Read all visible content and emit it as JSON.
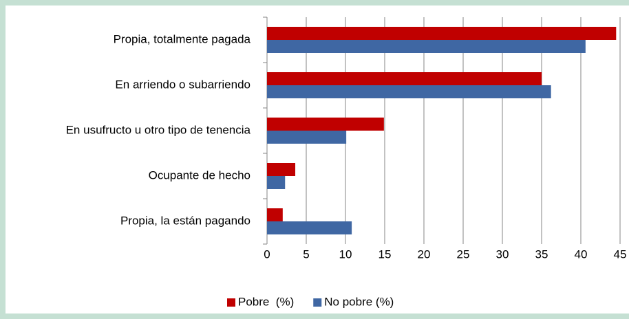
{
  "chart_data": {
    "type": "hbar",
    "categories": [
      "Propia, totalmente pagada",
      "En arriendo o subarriendo",
      "En usufructo u otro tipo de tenencia",
      "Ocupante de hecho",
      "Propia, la están pagando"
    ],
    "series": [
      {
        "name": "Pobre  (%)",
        "color": "#c00000",
        "values": [
          44.5,
          35.0,
          14.9,
          3.6,
          2.0
        ]
      },
      {
        "name": "No pobre (%)",
        "color": "#3f67a3",
        "values": [
          40.6,
          36.2,
          10.1,
          2.3,
          10.8
        ]
      }
    ],
    "xlim": [
      0,
      45
    ],
    "xticks": [
      0,
      5,
      10,
      15,
      20,
      25,
      30,
      35,
      40,
      45
    ],
    "grid": true,
    "legend": "bottom"
  }
}
